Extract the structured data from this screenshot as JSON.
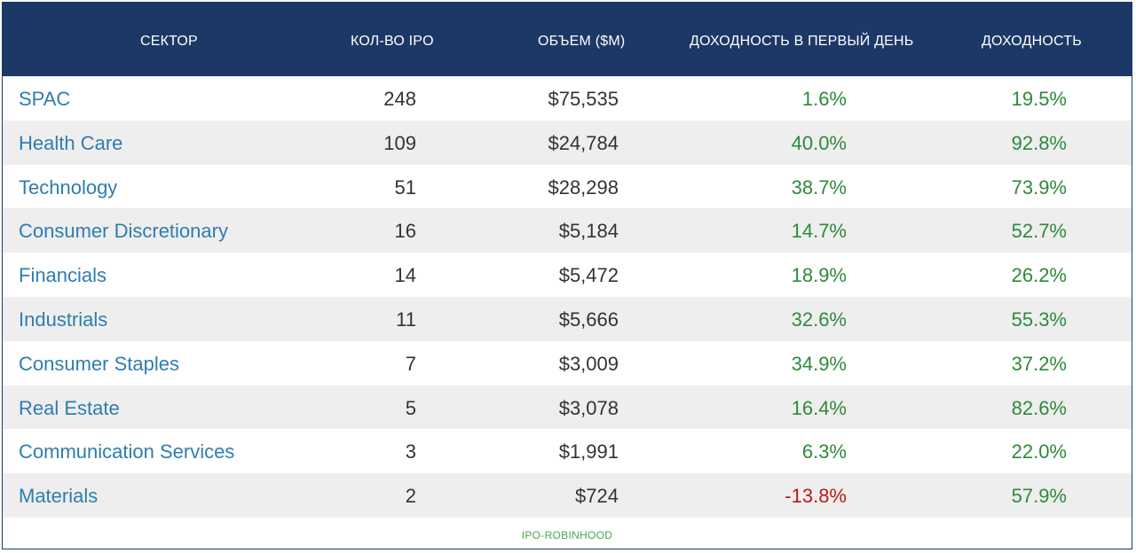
{
  "header": {
    "sector": "СЕКТОР",
    "count": "КОЛ-ВО IPO",
    "volume": "ОБЪЕМ ($M)",
    "first_day_return": "ДОХОДНОСТЬ В ПЕРВЫЙ ДЕНЬ",
    "return": "ДОХОДНОСТЬ"
  },
  "colors": {
    "header_bg": "#1c3866",
    "sector_text": "#2f7db0",
    "positive": "#2e8a3a",
    "negative": "#c01818",
    "alt_row": "#eeeeee"
  },
  "rows": [
    {
      "sector": "SPAC",
      "count": "248",
      "volume": "$75,535",
      "first_day": "1.6%",
      "return": "19.5%"
    },
    {
      "sector": "Health Care",
      "count": "109",
      "volume": "$24,784",
      "first_day": "40.0%",
      "return": "92.8%"
    },
    {
      "sector": "Technology",
      "count": "51",
      "volume": "$28,298",
      "first_day": "38.7%",
      "return": "73.9%"
    },
    {
      "sector": "Consumer Discretionary",
      "count": "16",
      "volume": "$5,184",
      "first_day": "14.7%",
      "return": "52.7%"
    },
    {
      "sector": "Financials",
      "count": "14",
      "volume": "$5,472",
      "first_day": "18.9%",
      "return": "26.2%"
    },
    {
      "sector": "Industrials",
      "count": "11",
      "volume": "$5,666",
      "first_day": "32.6%",
      "return": "55.3%"
    },
    {
      "sector": "Consumer Staples",
      "count": "7",
      "volume": "$3,009",
      "first_day": "34.9%",
      "return": "37.2%"
    },
    {
      "sector": "Real Estate",
      "count": "5",
      "volume": "$3,078",
      "first_day": "16.4%",
      "return": "82.6%"
    },
    {
      "sector": "Communication Services",
      "count": "3",
      "volume": "$1,991",
      "first_day": "6.3%",
      "return": "22.0%"
    },
    {
      "sector": "Materials",
      "count": "2",
      "volume": "$724",
      "first_day": "-13.8%",
      "return": "57.9%"
    }
  ],
  "source": "IPO-ROBINHOOD"
}
